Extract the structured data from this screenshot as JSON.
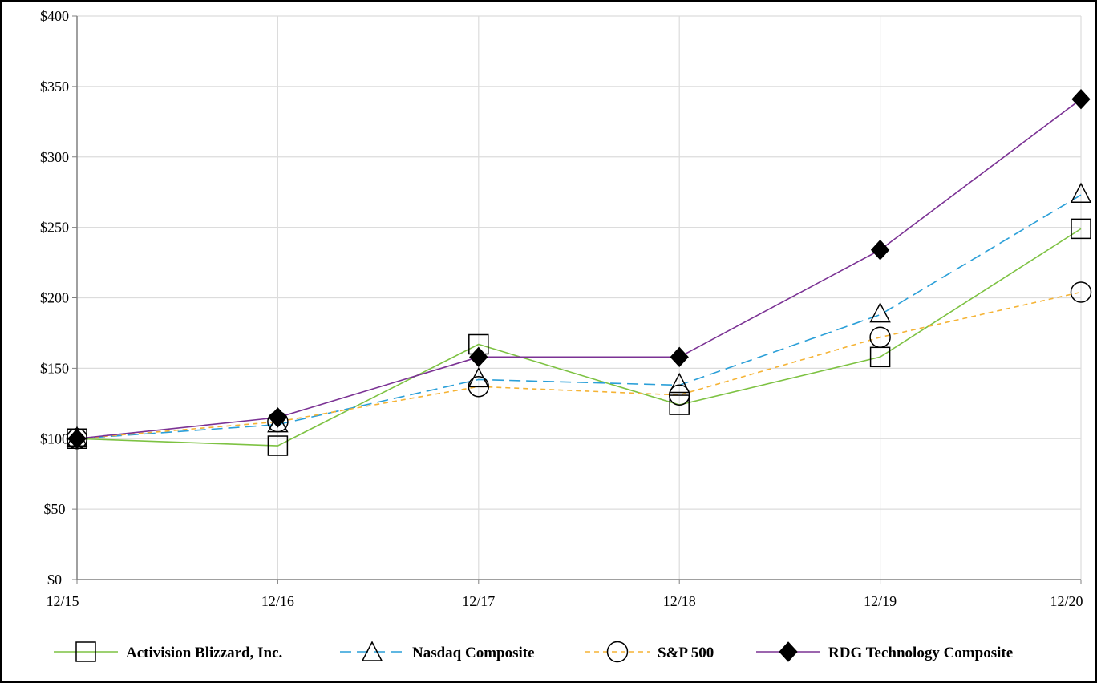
{
  "chart_data": {
    "type": "line",
    "title": "",
    "xlabel": "",
    "ylabel": "",
    "categories": [
      "12/15",
      "12/16",
      "12/17",
      "12/18",
      "12/19",
      "12/20"
    ],
    "y_ticks": [
      "$0",
      "$50",
      "$100",
      "$150",
      "$200",
      "$250",
      "$300",
      "$350",
      "$400"
    ],
    "ylim": [
      0,
      400
    ],
    "grid": true,
    "legend_position": "bottom",
    "series": [
      {
        "name": "Activision Blizzard, Inc.",
        "values": [
          100,
          95,
          167,
          124,
          158,
          249
        ],
        "color": "#7dc242",
        "dash": "solid",
        "marker": "square"
      },
      {
        "name": "Nasdaq Composite",
        "values": [
          100,
          110,
          142,
          138,
          188,
          273
        ],
        "color": "#2a9fd8",
        "dash": "long-dash",
        "marker": "triangle"
      },
      {
        "name": "S&P 500",
        "values": [
          100,
          112,
          137,
          131,
          172,
          204
        ],
        "color": "#f5b335",
        "dash": "short-dash",
        "marker": "circle"
      },
      {
        "name": "RDG Technology Composite",
        "values": [
          100,
          115,
          158,
          158,
          234,
          341
        ],
        "color": "#7b3294",
        "dash": "solid",
        "marker": "diamond"
      }
    ]
  }
}
